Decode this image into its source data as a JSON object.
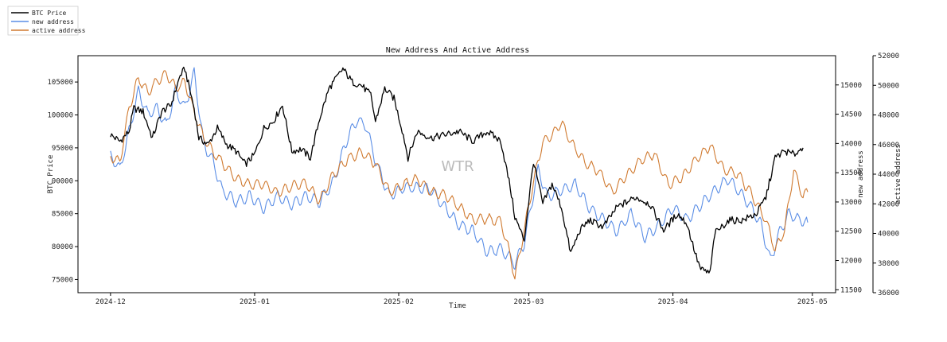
{
  "chart_data": {
    "type": "line",
    "title": "New Address And Active Address",
    "xlabel": "Time",
    "ylabel_left": "BTC Price",
    "ylabel_right1": "new address",
    "ylabel_right2": "active address",
    "watermark": "WTR",
    "legend_placement": "top-left outside",
    "grid": false,
    "x_range": [
      "2024-11-24",
      "2025-05-06"
    ],
    "x_ticks": [
      {
        "date": "2024-12-01",
        "label": "2024-12"
      },
      {
        "date": "2025-01-01",
        "label": "2025-01"
      },
      {
        "date": "2025-02-01",
        "label": "2025-02"
      },
      {
        "date": "2025-03-01",
        "label": "2025-03"
      },
      {
        "date": "2025-04-01",
        "label": "2025-04"
      },
      {
        "date": "2025-05-01",
        "label": "2025-05"
      }
    ],
    "axes": {
      "price": {
        "range": [
          73000,
          109000
        ],
        "ticks": [
          75000,
          80000,
          85000,
          90000,
          95000,
          100000,
          105000
        ],
        "side": "left"
      },
      "new_address": {
        "range": [
          11450,
          15500
        ],
        "ticks": [
          11500,
          12000,
          12500,
          13000,
          13500,
          14000,
          14500,
          15000
        ],
        "side": "right"
      },
      "active_address": {
        "range": [
          36000,
          52000
        ],
        "ticks": [
          36000,
          38000,
          40000,
          42000,
          44000,
          46000,
          48000,
          50000,
          52000
        ],
        "side": "right"
      }
    },
    "series": [
      {
        "name": "BTC Price",
        "axis": "price",
        "color": "#000000",
        "points": [
          [
            "2024-12-01",
            97000
          ],
          [
            "2024-12-03",
            96000
          ],
          [
            "2024-12-05",
            97500
          ],
          [
            "2024-12-06",
            101000
          ],
          [
            "2024-12-08",
            100500
          ],
          [
            "2024-12-10",
            96500
          ],
          [
            "2024-12-12",
            100500
          ],
          [
            "2024-12-14",
            101500
          ],
          [
            "2024-12-16",
            106000
          ],
          [
            "2024-12-17",
            107000
          ],
          [
            "2024-12-19",
            101000
          ],
          [
            "2024-12-20",
            96500
          ],
          [
            "2024-12-22",
            95500
          ],
          [
            "2024-12-24",
            98000
          ],
          [
            "2024-12-26",
            95500
          ],
          [
            "2024-12-28",
            94500
          ],
          [
            "2024-12-30",
            92500
          ],
          [
            "2025-01-01",
            94000
          ],
          [
            "2025-01-03",
            98000
          ],
          [
            "2025-01-05",
            99000
          ],
          [
            "2025-01-07",
            101500
          ],
          [
            "2025-01-09",
            94500
          ],
          [
            "2025-01-11",
            94800
          ],
          [
            "2025-01-13",
            93500
          ],
          [
            "2025-01-15",
            99500
          ],
          [
            "2025-01-17",
            104000
          ],
          [
            "2025-01-20",
            107000
          ],
          [
            "2025-01-22",
            105000
          ],
          [
            "2025-01-24",
            104500
          ],
          [
            "2025-01-26",
            103000
          ],
          [
            "2025-01-27",
            99000
          ],
          [
            "2025-01-29",
            104000
          ],
          [
            "2025-01-31",
            102500
          ],
          [
            "2025-02-02",
            97000
          ],
          [
            "2025-02-03",
            93500
          ],
          [
            "2025-02-05",
            97500
          ],
          [
            "2025-02-08",
            96500
          ],
          [
            "2025-02-11",
            97000
          ],
          [
            "2025-02-14",
            97500
          ],
          [
            "2025-02-17",
            96000
          ],
          [
            "2025-02-20",
            97500
          ],
          [
            "2025-02-23",
            96000
          ],
          [
            "2025-02-25",
            89000
          ],
          [
            "2025-02-26",
            84500
          ],
          [
            "2025-02-28",
            81000
          ],
          [
            "2025-03-02",
            93000
          ],
          [
            "2025-03-04",
            86500
          ],
          [
            "2025-03-06",
            89500
          ],
          [
            "2025-03-08",
            86000
          ],
          [
            "2025-03-10",
            79000
          ],
          [
            "2025-03-12",
            82500
          ],
          [
            "2025-03-14",
            84000
          ],
          [
            "2025-03-17",
            83000
          ],
          [
            "2025-03-20",
            86000
          ],
          [
            "2025-03-24",
            87500
          ],
          [
            "2025-03-27",
            86500
          ],
          [
            "2025-03-30",
            82500
          ],
          [
            "2025-04-02",
            85000
          ],
          [
            "2025-04-04",
            83500
          ],
          [
            "2025-04-06",
            78500
          ],
          [
            "2025-04-07",
            76500
          ],
          [
            "2025-04-09",
            76000
          ],
          [
            "2025-04-10",
            82000
          ],
          [
            "2025-04-13",
            84000
          ],
          [
            "2025-04-16",
            84000
          ],
          [
            "2025-04-19",
            85000
          ],
          [
            "2025-04-21",
            87500
          ],
          [
            "2025-04-23",
            93500
          ],
          [
            "2025-04-25",
            94500
          ],
          [
            "2025-04-27",
            94000
          ],
          [
            "2025-04-29",
            95000
          ]
        ]
      },
      {
        "name": "new address",
        "axis": "new_address",
        "color": "#5b8ee6",
        "points": [
          [
            "2024-12-01",
            13800
          ],
          [
            "2024-12-03",
            13550
          ],
          [
            "2024-12-05",
            14200
          ],
          [
            "2024-12-07",
            14900
          ],
          [
            "2024-12-09",
            14500
          ],
          [
            "2024-12-11",
            14600
          ],
          [
            "2024-12-13",
            14300
          ],
          [
            "2024-12-15",
            14900
          ],
          [
            "2024-12-17",
            14600
          ],
          [
            "2024-12-19",
            15200
          ],
          [
            "2024-12-21",
            14000
          ],
          [
            "2024-12-23",
            13700
          ],
          [
            "2024-12-25",
            13200
          ],
          [
            "2024-12-28",
            13000
          ],
          [
            "2024-12-31",
            13100
          ],
          [
            "2025-01-03",
            12900
          ],
          [
            "2025-01-06",
            13100
          ],
          [
            "2025-01-09",
            12950
          ],
          [
            "2025-01-12",
            13100
          ],
          [
            "2025-01-15",
            13000
          ],
          [
            "2025-01-18",
            13350
          ],
          [
            "2025-01-21",
            14100
          ],
          [
            "2025-01-23",
            14400
          ],
          [
            "2025-01-25",
            14300
          ],
          [
            "2025-01-27",
            13700
          ],
          [
            "2025-01-30",
            13100
          ],
          [
            "2025-02-02",
            13250
          ],
          [
            "2025-02-05",
            13250
          ],
          [
            "2025-02-08",
            13200
          ],
          [
            "2025-02-11",
            12900
          ],
          [
            "2025-02-14",
            12600
          ],
          [
            "2025-02-17",
            12500
          ],
          [
            "2025-02-20",
            12150
          ],
          [
            "2025-02-23",
            12200
          ],
          [
            "2025-02-26",
            11950
          ],
          [
            "2025-02-28",
            12300
          ],
          [
            "2025-03-03",
            13550
          ],
          [
            "2025-03-05",
            13100
          ],
          [
            "2025-03-08",
            13200
          ],
          [
            "2025-03-11",
            13300
          ],
          [
            "2025-03-14",
            12900
          ],
          [
            "2025-03-17",
            12700
          ],
          [
            "2025-03-20",
            12500
          ],
          [
            "2025-03-23",
            12800
          ],
          [
            "2025-03-26",
            12400
          ],
          [
            "2025-03-29",
            12600
          ],
          [
            "2025-04-01",
            12900
          ],
          [
            "2025-04-04",
            12700
          ],
          [
            "2025-04-07",
            12950
          ],
          [
            "2025-04-10",
            13200
          ],
          [
            "2025-04-13",
            13400
          ],
          [
            "2025-04-15",
            13200
          ],
          [
            "2025-04-18",
            12900
          ],
          [
            "2025-04-20",
            12600
          ],
          [
            "2025-04-22",
            12000
          ],
          [
            "2025-04-24",
            12500
          ],
          [
            "2025-04-26",
            12800
          ],
          [
            "2025-04-28",
            12700
          ],
          [
            "2025-04-30",
            12650
          ]
        ]
      },
      {
        "name": "active address",
        "axis": "active_address",
        "color": "#d07a30",
        "points": [
          [
            "2024-12-01",
            45200
          ],
          [
            "2024-12-03",
            44800
          ],
          [
            "2024-12-05",
            48500
          ],
          [
            "2024-12-07",
            50500
          ],
          [
            "2024-12-09",
            49500
          ],
          [
            "2024-12-11",
            50300
          ],
          [
            "2024-12-13",
            50800
          ],
          [
            "2024-12-15",
            49800
          ],
          [
            "2024-12-17",
            50200
          ],
          [
            "2024-12-19",
            48200
          ],
          [
            "2024-12-21",
            46500
          ],
          [
            "2024-12-23",
            45500
          ],
          [
            "2024-12-25",
            44800
          ],
          [
            "2024-12-28",
            43700
          ],
          [
            "2024-12-31",
            43300
          ],
          [
            "2025-01-03",
            43300
          ],
          [
            "2025-01-06",
            42700
          ],
          [
            "2025-01-09",
            43200
          ],
          [
            "2025-01-12",
            43400
          ],
          [
            "2025-01-15",
            42200
          ],
          [
            "2025-01-18",
            44000
          ],
          [
            "2025-01-21",
            45000
          ],
          [
            "2025-01-24",
            45500
          ],
          [
            "2025-01-27",
            44700
          ],
          [
            "2025-01-30",
            42800
          ],
          [
            "2025-02-02",
            43300
          ],
          [
            "2025-02-05",
            43700
          ],
          [
            "2025-02-08",
            42800
          ],
          [
            "2025-02-11",
            42600
          ],
          [
            "2025-02-14",
            41800
          ],
          [
            "2025-02-17",
            40900
          ],
          [
            "2025-02-20",
            41000
          ],
          [
            "2025-02-23",
            40800
          ],
          [
            "2025-02-25",
            38500
          ],
          [
            "2025-02-26",
            37000
          ],
          [
            "2025-02-28",
            40200
          ],
          [
            "2025-03-02",
            43500
          ],
          [
            "2025-03-04",
            46200
          ],
          [
            "2025-03-06",
            46600
          ],
          [
            "2025-03-08",
            47500
          ],
          [
            "2025-03-10",
            46200
          ],
          [
            "2025-03-13",
            44800
          ],
          [
            "2025-03-16",
            44200
          ],
          [
            "2025-03-19",
            42800
          ],
          [
            "2025-03-22",
            43900
          ],
          [
            "2025-03-25",
            44900
          ],
          [
            "2025-03-28",
            45400
          ],
          [
            "2025-03-31",
            43300
          ],
          [
            "2025-04-03",
            43800
          ],
          [
            "2025-04-06",
            45000
          ],
          [
            "2025-04-09",
            45900
          ],
          [
            "2025-04-12",
            44300
          ],
          [
            "2025-04-15",
            44000
          ],
          [
            "2025-04-18",
            42600
          ],
          [
            "2025-04-21",
            40900
          ],
          [
            "2025-04-23",
            38900
          ],
          [
            "2025-04-25",
            40200
          ],
          [
            "2025-04-27",
            44300
          ],
          [
            "2025-04-29",
            42500
          ],
          [
            "2025-04-30",
            42800
          ]
        ]
      }
    ]
  }
}
